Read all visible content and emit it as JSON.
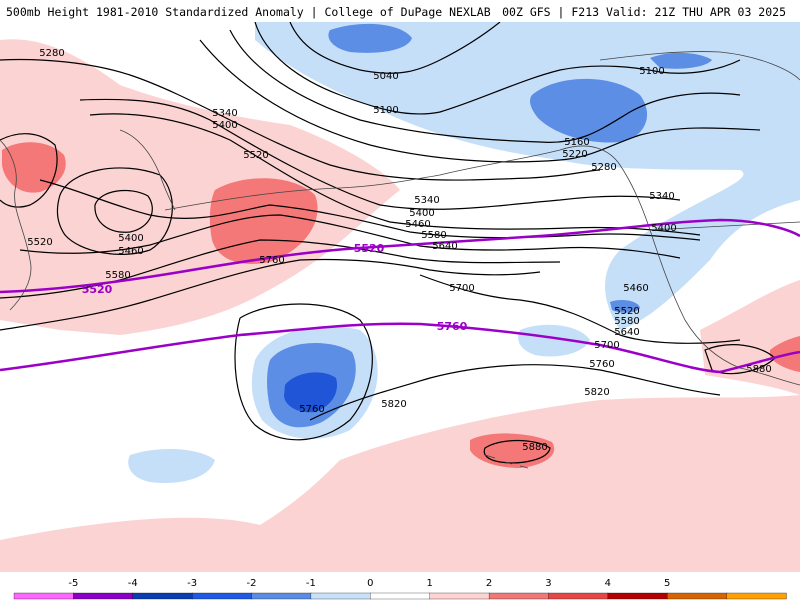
{
  "header": {
    "title": "500mb Height 1981-2010 Standardized Anomaly | College of DuPage NEXLAB",
    "run_info": "00Z GFS | F213 Valid: 21Z THU APR 03 2025"
  },
  "contour_labels": [
    {
      "name": "label-5280-west",
      "text": "5280"
    },
    {
      "name": "label-5040",
      "text": "5040"
    },
    {
      "name": "label-5100-north",
      "text": "5100"
    },
    {
      "name": "label-5100-east",
      "text": "5100"
    },
    {
      "name": "label-5340-north",
      "text": "5340"
    },
    {
      "name": "label-5400-north",
      "text": "5400"
    },
    {
      "name": "label-5520-ridge",
      "text": "5520"
    },
    {
      "name": "label-5160",
      "text": "5160"
    },
    {
      "name": "label-5220",
      "text": "5220"
    },
    {
      "name": "label-5280-east",
      "text": "5280"
    },
    {
      "name": "label-5340-east",
      "text": "5340"
    },
    {
      "name": "label-5340-mid",
      "text": "5340"
    },
    {
      "name": "label-5400-mid",
      "text": "5400"
    },
    {
      "name": "label-5460-mid",
      "text": "5460"
    },
    {
      "name": "label-5580-mid",
      "text": "5580"
    },
    {
      "name": "label-5640-mid",
      "text": "5640"
    },
    {
      "name": "label-5400-low",
      "text": "5400"
    },
    {
      "name": "label-5460-low",
      "text": "5460"
    },
    {
      "name": "label-5520-west",
      "text": "5520"
    },
    {
      "name": "label-5580-west",
      "text": "5580"
    },
    {
      "name": "label-5760-mid",
      "text": "5760"
    },
    {
      "name": "label-5700",
      "text": "5700"
    },
    {
      "name": "label-5400-coast",
      "text": "5400"
    },
    {
      "name": "label-5460-coast",
      "text": "5460"
    },
    {
      "name": "label-5520-coast",
      "text": "5520"
    },
    {
      "name": "label-5580-coast",
      "text": "5580"
    },
    {
      "name": "label-5640-coast",
      "text": "5640"
    },
    {
      "name": "label-5700-coast",
      "text": "5700"
    },
    {
      "name": "label-5760-coast",
      "text": "5760"
    },
    {
      "name": "label-5820-coast",
      "text": "5820"
    },
    {
      "name": "label-5760-low",
      "text": "5760"
    },
    {
      "name": "label-5820-low",
      "text": "5820"
    },
    {
      "name": "label-5880-hawaii",
      "text": "5880"
    },
    {
      "name": "label-5880-mexico",
      "text": "5880"
    }
  ],
  "reference_lines": [
    {
      "name": "ref-5520",
      "text": "5520",
      "color": "#9a00c8"
    },
    {
      "name": "ref-5760",
      "text": "5760",
      "color": "#9a00c8"
    }
  ],
  "colorbar": {
    "ticks": [
      "-5",
      "-4",
      "-3",
      "-2",
      "-1",
      "0",
      "1",
      "2",
      "3",
      "4",
      "5"
    ],
    "colors": [
      "#ff66ff",
      "#8a00c8",
      "#0a3cb4",
      "#1e5ae6",
      "#5a8ce6",
      "#c8e1fa",
      "#ffffff",
      "#ffd2d2",
      "#f07878",
      "#e64646",
      "#b40000",
      "#d76400",
      "#ffa000"
    ]
  },
  "shading_colors": {
    "neg1": "#c6dff8",
    "neg2": "#5c8ee6",
    "neg3": "#1f55d6",
    "pos1": "#fbd3d3",
    "pos2": "#f47878",
    "pos3": "#e84848"
  }
}
